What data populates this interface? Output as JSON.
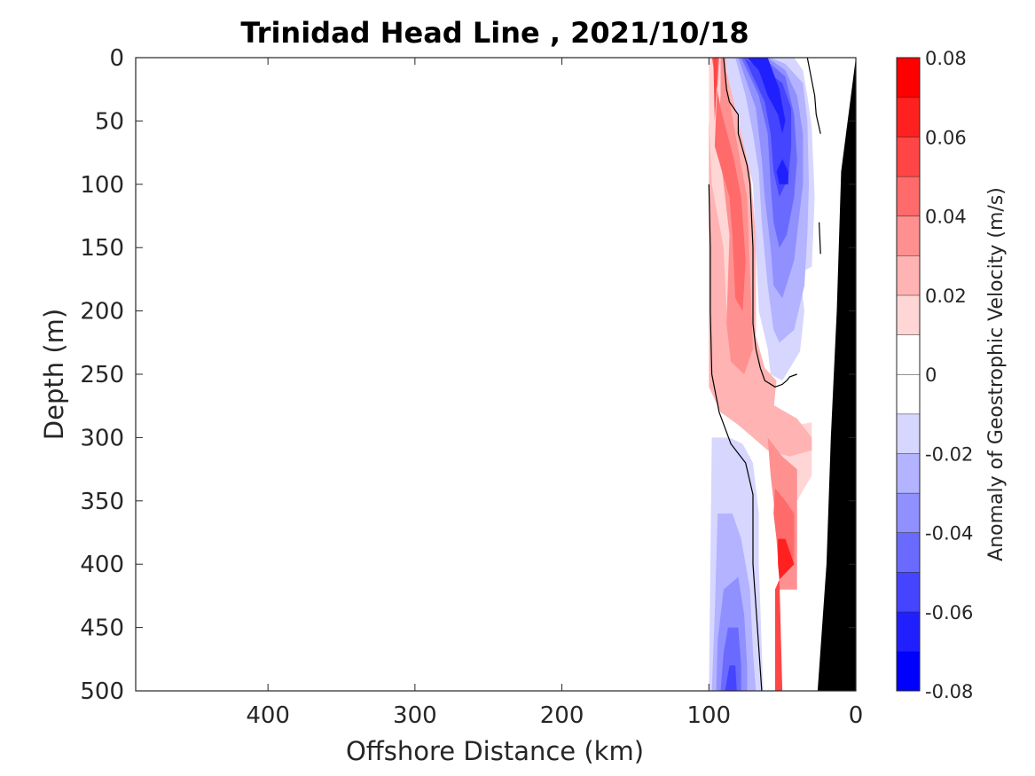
{
  "chart_data": {
    "type": "contour",
    "title": "Trinidad Head Line , 2021/10/18",
    "xlabel": "Offshore Distance (km)",
    "ylabel": "Depth (m)",
    "xlim": [
      490,
      0
    ],
    "ylim": [
      0,
      500
    ],
    "x_reversed": true,
    "y_reversed": true,
    "xticks": [
      400,
      300,
      200,
      100,
      0
    ],
    "xtick_labels": [
      "400",
      "300",
      "200",
      "100",
      "0"
    ],
    "yticks": [
      0,
      50,
      100,
      150,
      200,
      250,
      300,
      350,
      400,
      450,
      500
    ],
    "ytick_labels": [
      "0",
      "50",
      "100",
      "150",
      "200",
      "250",
      "300",
      "350",
      "400",
      "450",
      "500"
    ],
    "colorbar": {
      "label": "Anomaly of Geostrophic Velocity (m/s)",
      "range": [
        -0.08,
        0.08
      ],
      "levels": [
        -0.08,
        -0.07,
        -0.06,
        -0.05,
        -0.04,
        -0.03,
        -0.02,
        -0.01,
        0,
        0.01,
        0.02,
        0.03,
        0.04,
        0.05,
        0.06,
        0.07,
        0.08
      ],
      "tick_values": [
        0.08,
        0.06,
        0.04,
        0.02,
        0,
        -0.02,
        -0.04,
        -0.06,
        -0.08
      ],
      "tick_labels": [
        "0.08",
        "0.06",
        "0.04",
        "0.02",
        "0",
        "-0.02",
        "-0.04",
        "-0.06",
        "-0.08"
      ],
      "colors": [
        "#0000ff",
        "#2020ff",
        "#4545ff",
        "#6a6aff",
        "#9090ff",
        "#b3b3ff",
        "#d6d6ff",
        "#ffffff",
        "#ffffff",
        "#ffd6d6",
        "#ffb3b3",
        "#ff9090",
        "#ff6a6a",
        "#ff4545",
        "#ff2020",
        "#ff0000"
      ]
    },
    "bathymetry_color": "#000000",
    "bathymetry": [
      [
        0,
        0
      ],
      [
        10,
        90
      ],
      [
        13,
        200
      ],
      [
        17,
        300
      ],
      [
        20,
        400
      ],
      [
        26,
        500
      ]
    ],
    "regions": [
      {
        "v": 0.025,
        "pts": [
          [
            100,
            0
          ],
          [
            92,
            0
          ],
          [
            90,
            40
          ],
          [
            86,
            80
          ],
          [
            82,
            120
          ],
          [
            80,
            200
          ],
          [
            82,
            260
          ],
          [
            76,
            280
          ],
          [
            65,
            295
          ],
          [
            57,
            290
          ],
          [
            54,
            255
          ],
          [
            62,
            245
          ],
          [
            68,
            220
          ],
          [
            68,
            140
          ],
          [
            72,
            90
          ],
          [
            82,
            40
          ],
          [
            88,
            10
          ],
          [
            88,
            0
          ],
          [
            100,
            0
          ],
          [
            100,
            100
          ],
          [
            100,
            260
          ],
          [
            92,
            280
          ],
          [
            80,
            290
          ],
          [
            70,
            300
          ],
          [
            60,
            310
          ],
          [
            45,
            315
          ],
          [
            30,
            310
          ],
          [
            30,
            300
          ],
          [
            40,
            285
          ],
          [
            55,
            275
          ],
          [
            70,
            265
          ],
          [
            80,
            250
          ],
          [
            85,
            230
          ],
          [
            88,
            200
          ],
          [
            90,
            150
          ],
          [
            98,
            100
          ],
          [
            100,
            50
          ]
        ]
      },
      {
        "v": 0.015,
        "pts": [
          [
            100,
            0
          ],
          [
            90,
            0
          ],
          [
            90,
            20
          ],
          [
            80,
            70
          ],
          [
            72,
            100
          ],
          [
            70,
            160
          ],
          [
            70,
            230
          ],
          [
            66,
            270
          ],
          [
            55,
            285
          ],
          [
            40,
            290
          ],
          [
            30,
            288
          ],
          [
            30,
            330
          ],
          [
            40,
            350
          ],
          [
            55,
            300
          ],
          [
            60,
            280
          ],
          [
            72,
            262
          ],
          [
            82,
            240
          ],
          [
            88,
            210
          ],
          [
            92,
            170
          ],
          [
            98,
            130
          ],
          [
            100,
            90
          ]
        ]
      },
      {
        "v": 0.035,
        "pts": [
          [
            98,
            0
          ],
          [
            92,
            0
          ],
          [
            92,
            30
          ],
          [
            94,
            60
          ],
          [
            90,
            100
          ],
          [
            86,
            140
          ],
          [
            88,
            210
          ],
          [
            85,
            240
          ],
          [
            76,
            250
          ],
          [
            70,
            230
          ],
          [
            72,
            170
          ],
          [
            74,
            110
          ],
          [
            82,
            60
          ],
          [
            88,
            20
          ],
          [
            90,
            0
          ]
        ]
      },
      {
        "v": 0.045,
        "pts": [
          [
            98,
            0
          ],
          [
            93,
            0
          ],
          [
            95,
            40
          ],
          [
            96,
            70
          ],
          [
            86,
            110
          ],
          [
            84,
            140
          ],
          [
            82,
            190
          ],
          [
            77,
            200
          ],
          [
            75,
            160
          ],
          [
            78,
            110
          ],
          [
            83,
            80
          ],
          [
            92,
            40
          ]
        ]
      },
      {
        "v": 0.055,
        "pts": [
          [
            97,
            0
          ],
          [
            94,
            0
          ],
          [
            95,
            30
          ],
          [
            96,
            50
          ]
        ]
      },
      {
        "v": 0.035,
        "pts": [
          [
            60,
            300
          ],
          [
            50,
            315
          ],
          [
            40,
            325
          ],
          [
            40,
            420
          ],
          [
            52,
            420
          ],
          [
            52,
            400
          ],
          [
            55,
            360
          ],
          [
            58,
            330
          ]
        ]
      },
      {
        "v": 0.045,
        "pts": [
          [
            55,
            340
          ],
          [
            48,
            350
          ],
          [
            42,
            360
          ],
          [
            42,
            400
          ],
          [
            52,
            412
          ],
          [
            54,
            380
          ],
          [
            56,
            360
          ]
        ]
      },
      {
        "v": 0.065,
        "pts": [
          [
            53,
            380
          ],
          [
            48,
            380
          ],
          [
            42,
            400
          ],
          [
            52,
            412
          ],
          [
            53,
            400
          ]
        ]
      },
      {
        "v": 0.055,
        "pts": [
          [
            55,
            420
          ],
          [
            52,
            412
          ],
          [
            50,
            500
          ],
          [
            55,
            500
          ]
        ]
      },
      {
        "v": -0.015,
        "pts": [
          [
            88,
            0
          ],
          [
            72,
            0
          ],
          [
            60,
            0
          ],
          [
            42,
            0
          ],
          [
            36,
            10
          ],
          [
            33,
            30
          ],
          [
            30,
            55
          ],
          [
            28,
            110
          ],
          [
            30,
            165
          ],
          [
            38,
            170
          ],
          [
            35,
            200
          ],
          [
            38,
            232
          ],
          [
            50,
            255
          ],
          [
            58,
            250
          ],
          [
            60,
            230
          ],
          [
            66,
            200
          ],
          [
            68,
            150
          ],
          [
            70,
            100
          ],
          [
            76,
            70
          ],
          [
            82,
            40
          ],
          [
            88,
            10
          ]
        ]
      },
      {
        "v": -0.025,
        "pts": [
          [
            82,
            0
          ],
          [
            70,
            0
          ],
          [
            58,
            0
          ],
          [
            48,
            5
          ],
          [
            36,
            20
          ],
          [
            33,
            50
          ],
          [
            32,
            100
          ],
          [
            33,
            140
          ],
          [
            35,
            180
          ],
          [
            42,
            215
          ],
          [
            52,
            225
          ],
          [
            56,
            215
          ],
          [
            60,
            180
          ],
          [
            64,
            130
          ],
          [
            66,
            90
          ],
          [
            70,
            60
          ],
          [
            75,
            30
          ]
        ]
      },
      {
        "v": -0.035,
        "pts": [
          [
            80,
            0
          ],
          [
            72,
            0
          ],
          [
            60,
            0
          ],
          [
            48,
            10
          ],
          [
            40,
            30
          ],
          [
            36,
            60
          ],
          [
            36,
            100
          ],
          [
            40,
            140
          ],
          [
            42,
            160
          ],
          [
            50,
            190
          ],
          [
            56,
            180
          ],
          [
            58,
            150
          ],
          [
            62,
            110
          ],
          [
            64,
            80
          ],
          [
            68,
            40
          ]
        ]
      },
      {
        "v": -0.045,
        "pts": [
          [
            78,
            0
          ],
          [
            72,
            0
          ],
          [
            58,
            5
          ],
          [
            48,
            15
          ],
          [
            42,
            45
          ],
          [
            40,
            80
          ],
          [
            42,
            110
          ],
          [
            47,
            140
          ],
          [
            52,
            150
          ],
          [
            56,
            130
          ],
          [
            58,
            100
          ],
          [
            60,
            60
          ],
          [
            66,
            30
          ]
        ]
      },
      {
        "v": -0.055,
        "pts": [
          [
            76,
            0
          ],
          [
            70,
            5
          ],
          [
            56,
            15
          ],
          [
            50,
            20
          ],
          [
            44,
            40
          ],
          [
            44,
            70
          ],
          [
            46,
            95
          ],
          [
            52,
            110
          ],
          [
            56,
            90
          ],
          [
            58,
            60
          ],
          [
            62,
            35
          ]
        ]
      },
      {
        "v": -0.065,
        "pts": [
          [
            74,
            0
          ],
          [
            66,
            0
          ],
          [
            60,
            0
          ],
          [
            52,
            25
          ],
          [
            48,
            50
          ],
          [
            50,
            60
          ],
          [
            53,
            45
          ],
          [
            60,
            30
          ],
          [
            66,
            10
          ]
        ]
      },
      {
        "v": -0.065,
        "pts": [
          [
            50,
            80
          ],
          [
            46,
            90
          ],
          [
            46,
            100
          ],
          [
            52,
            100
          ],
          [
            54,
            90
          ]
        ]
      },
      {
        "v": -0.005,
        "pts": [
          [
            100,
            130
          ],
          [
            97,
            140
          ],
          [
            98,
            210
          ],
          [
            97,
            240
          ],
          [
            98,
            275
          ],
          [
            100,
            285
          ]
        ]
      },
      {
        "v": -0.015,
        "pts": [
          [
            98,
            300
          ],
          [
            86,
            300
          ],
          [
            77,
            305
          ],
          [
            70,
            320
          ],
          [
            66,
            360
          ],
          [
            66,
            400
          ],
          [
            63,
            500
          ],
          [
            100,
            500
          ]
        ]
      },
      {
        "v": -0.025,
        "pts": [
          [
            94,
            360
          ],
          [
            84,
            360
          ],
          [
            78,
            380
          ],
          [
            72,
            420
          ],
          [
            70,
            470
          ],
          [
            68,
            500
          ],
          [
            98,
            500
          ],
          [
            96,
            440
          ]
        ]
      },
      {
        "v": -0.035,
        "pts": [
          [
            90,
            420
          ],
          [
            80,
            410
          ],
          [
            76,
            440
          ],
          [
            74,
            480
          ],
          [
            74,
            500
          ],
          [
            95,
            500
          ],
          [
            94,
            460
          ]
        ]
      },
      {
        "v": -0.045,
        "pts": [
          [
            87,
            450
          ],
          [
            80,
            450
          ],
          [
            78,
            480
          ],
          [
            78,
            500
          ],
          [
            92,
            500
          ],
          [
            90,
            470
          ]
        ]
      },
      {
        "v": -0.055,
        "pts": [
          [
            86,
            480
          ],
          [
            82,
            480
          ],
          [
            81,
            500
          ],
          [
            89,
            500
          ]
        ]
      }
    ],
    "zero_contours": [
      [
        [
          90,
          0
        ],
        [
          88,
          25
        ],
        [
          86,
          35
        ],
        [
          80,
          45
        ],
        [
          80,
          60
        ],
        [
          74,
          85
        ],
        [
          72,
          100
        ],
        [
          70,
          150
        ],
        [
          70,
          180
        ],
        [
          70,
          210
        ],
        [
          68,
          230
        ],
        [
          65,
          245
        ],
        [
          62,
          255
        ],
        [
          55,
          260
        ],
        [
          50,
          258
        ],
        [
          47,
          255
        ],
        [
          45,
          252
        ],
        [
          40,
          250
        ]
      ],
      [
        [
          100,
          100
        ],
        [
          99,
          150
        ],
        [
          99,
          200
        ],
        [
          98,
          250
        ],
        [
          93,
          280
        ],
        [
          85,
          305
        ],
        [
          75,
          320
        ],
        [
          70,
          345
        ],
        [
          70,
          400
        ],
        [
          67,
          450
        ],
        [
          64,
          500
        ]
      ],
      [
        [
          33,
          0
        ],
        [
          28,
          30
        ],
        [
          27,
          45
        ],
        [
          24,
          60
        ]
      ],
      [
        [
          25,
          130
        ],
        [
          24,
          155
        ]
      ]
    ]
  }
}
